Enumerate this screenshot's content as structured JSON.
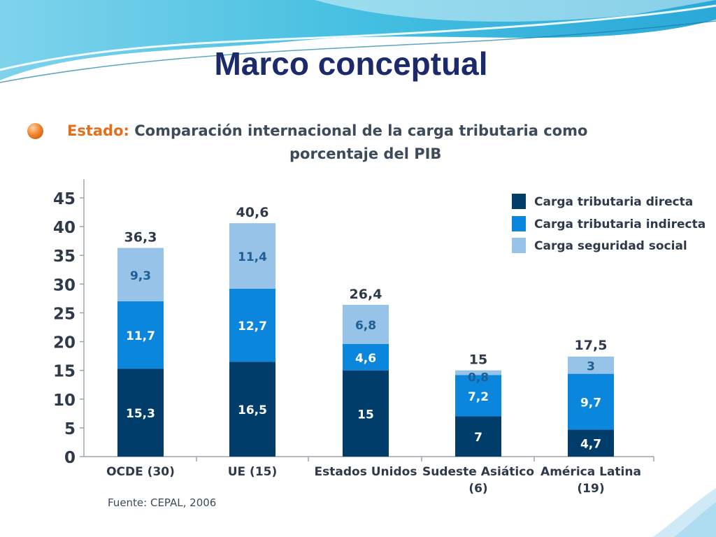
{
  "slide": {
    "title": "Marco conceptual"
  },
  "heading": {
    "lead": "Estado:",
    "text_line1": "Comparación internacional de la carga tributaria como",
    "text_line2": "porcentaje del PIB"
  },
  "source": "Fuente: CEPAL, 2006",
  "colors": {
    "title": "#1b2a6b",
    "heading_lead": "#e36f1e",
    "direct": "#003d6a",
    "indirect": "#0a86dc",
    "social": "#96c3e7",
    "label_dark": "#2e3a4a",
    "bullet": "#f2862f"
  },
  "icons": {
    "bullet": "orange-sphere-bullet"
  },
  "chart_data": {
    "type": "bar",
    "stacked": true,
    "categories": [
      [
        "OCDE (30)"
      ],
      [
        "UE (15)"
      ],
      [
        "Estados Unidos"
      ],
      [
        "Sudeste Asiático",
        "(6)"
      ],
      [
        "América Latina",
        "(19)"
      ]
    ],
    "series": [
      {
        "name": "Carga tributaria directa",
        "values": [
          15.3,
          16.5,
          15,
          7,
          4.7
        ],
        "labels": [
          "15,3",
          "16,5",
          "15",
          "7",
          "4,7"
        ]
      },
      {
        "name": "Carga tributaria indirecta",
        "values": [
          11.7,
          12.7,
          4.6,
          7.2,
          9.7
        ],
        "labels": [
          "11,7",
          "12,7",
          "4,6",
          "7,2",
          "9,7"
        ]
      },
      {
        "name": "Carga seguridad social",
        "values": [
          9.3,
          11.4,
          6.8,
          0.8,
          3
        ],
        "labels": [
          "9,3",
          "11,4",
          "6,8",
          "0,8",
          "3"
        ]
      }
    ],
    "totals": [
      36.3,
      40.6,
      26.4,
      15,
      17.5
    ],
    "total_labels": [
      "36,3",
      "40,6",
      "26,4",
      "15",
      "17,5"
    ],
    "yticks": [
      0,
      5,
      10,
      15,
      20,
      25,
      30,
      35,
      40,
      45
    ],
    "ylim": [
      0,
      47
    ],
    "grid": false,
    "legend_position": "top-right"
  }
}
